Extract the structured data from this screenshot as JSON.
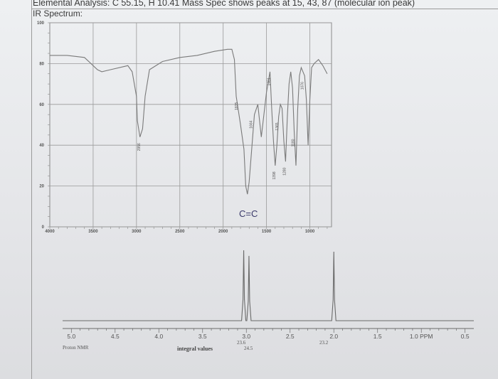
{
  "header": {
    "line1": "Elemental Analysis: C 55.15, H 10.41 Mass Spec shows peaks at 15, 43, 87 (molecular ion peak)",
    "line2": "IR Spectrum:"
  },
  "colors": {
    "trace": "#7a7a7a",
    "grid": "#9a9a9a",
    "background": "#e9eaec"
  },
  "chart_data": [
    {
      "type": "line",
      "title": "IR Spectrum:",
      "x_ticks": [
        "4000",
        "3500",
        "3000",
        "2500",
        "2000",
        "1500",
        "1000"
      ],
      "y_ticks": [
        "100",
        "80",
        "60",
        "40",
        "20",
        "0"
      ],
      "xlim": [
        4000,
        750
      ],
      "ylim": [
        0,
        100
      ],
      "grid": true,
      "series": [
        {
          "x": [
            4000,
            3800,
            3600,
            3450,
            3400,
            3300,
            3100,
            3050,
            3000,
            2990,
            2960,
            2930,
            2900,
            2850,
            2700,
            2500,
            2300,
            2100,
            1950,
            1900,
            1870,
            1850,
            1800,
            1760,
            1740,
            1720,
            1700,
            1640,
            1600,
            1560,
            1500,
            1460,
            1440,
            1420,
            1400,
            1380,
            1360,
            1340,
            1320,
            1300,
            1280,
            1260,
            1240,
            1220,
            1200,
            1180,
            1160,
            1140,
            1120,
            1100,
            1060,
            1040,
            1020,
            1000,
            980,
            950,
            900,
            850,
            800
          ],
          "y": [
            84,
            84,
            83,
            77,
            76,
            77,
            79,
            76,
            64,
            52,
            44,
            48,
            64,
            77,
            81,
            83,
            84,
            86,
            87,
            87,
            82,
            64,
            50,
            38,
            20,
            16,
            22,
            55,
            60,
            44,
            66,
            76,
            58,
            42,
            30,
            40,
            54,
            60,
            58,
            42,
            32,
            54,
            70,
            76,
            68,
            46,
            30,
            58,
            74,
            78,
            74,
            62,
            40,
            62,
            78,
            80,
            82,
            79,
            75
          ]
        }
      ],
      "peak_labels": [
        "2956",
        "1835",
        "1664",
        "1461",
        "1398",
        "1365",
        "1280",
        "1180",
        "1076"
      ],
      "annotation": "C=C"
    },
    {
      "type": "line",
      "title": "",
      "x_ticks": [
        "5.0",
        "4.5",
        "4.0",
        "3.5",
        "3.0",
        "2.5",
        "2.0",
        "1.5",
        "1.0 PPM",
        "0.5"
      ],
      "xlim": [
        5.1,
        0.4
      ],
      "series": [
        {
          "peaks": [
            {
              "ppm": 3.03,
              "height": 1.0
            },
            {
              "ppm": 2.97,
              "height": 0.92
            },
            {
              "ppm": 2.0,
              "height": 0.98
            }
          ]
        }
      ],
      "labels": {
        "proton_nmr": "Proton NMR",
        "integral_values": "integral values",
        "int_1": "23.6",
        "int_2": "24.5",
        "int_3": "23.2"
      }
    }
  ]
}
